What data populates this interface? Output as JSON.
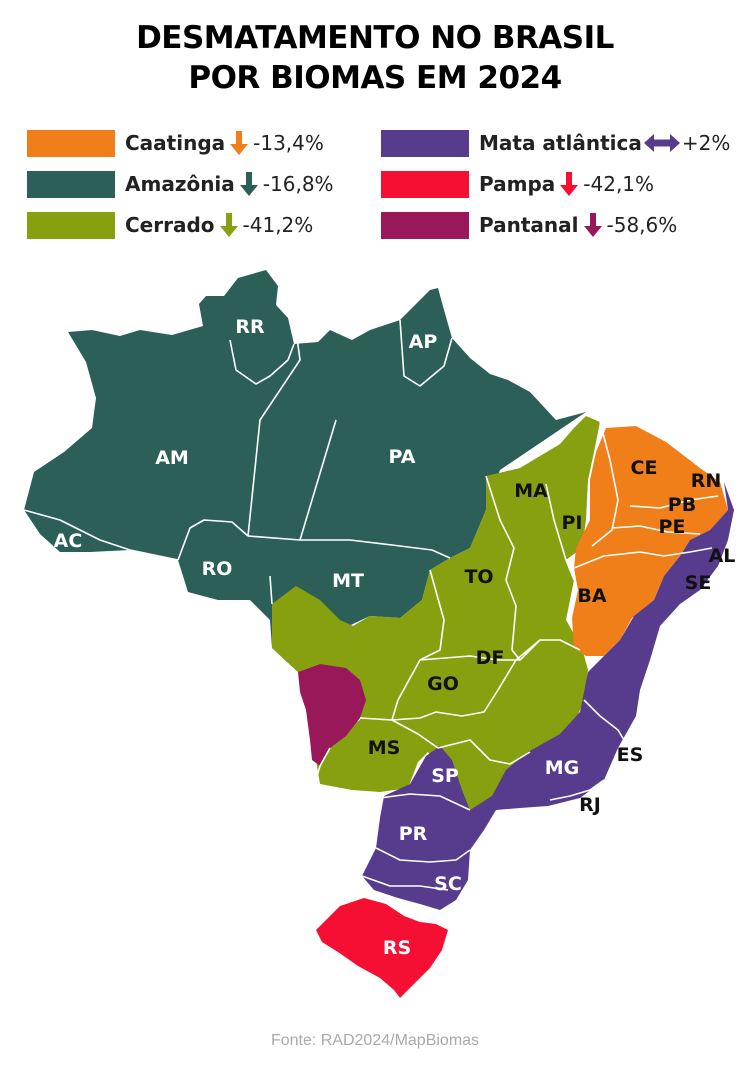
{
  "title": {
    "line1": "DESMATAMENTO NO BRASIL",
    "line2": "POR BIOMAS EM 2024"
  },
  "colors": {
    "caatinga": "#f07f1a",
    "amazonia": "#2d5f59",
    "cerrado": "#87a00f",
    "mata_atlantica": "#573b8d",
    "pampa": "#f50f32",
    "pantanal": "#98185a",
    "borders": "#ffffff"
  },
  "legend": [
    {
      "name": "Caatinga",
      "value": "-13,4%",
      "direction": "down",
      "color": "#f07f1a",
      "icon": "arrow-down-icon"
    },
    {
      "name": "Amazônia",
      "value": "-16,8%",
      "direction": "down",
      "color": "#2d5f59",
      "icon": "arrow-down-icon"
    },
    {
      "name": "Cerrado",
      "value": "-41,2%",
      "direction": "down",
      "color": "#87a00f",
      "icon": "arrow-down-icon"
    },
    {
      "name": "Mata atlântica",
      "value": "+2%",
      "direction": "both",
      "color": "#573b8d",
      "icon": "arrow-left-right-icon"
    },
    {
      "name": "Pampa",
      "value": "-42,1%",
      "direction": "down",
      "color": "#f50f32",
      "icon": "arrow-down-icon"
    },
    {
      "name": "Pantanal",
      "value": "-58,6%",
      "direction": "down",
      "color": "#98185a",
      "icon": "arrow-down-icon"
    }
  ],
  "states": [
    "RR",
    "AP",
    "AM",
    "PA",
    "AC",
    "RO",
    "MT",
    "MA",
    "PI",
    "CE",
    "RN",
    "PB",
    "PE",
    "AL",
    "SE",
    "BA",
    "TO",
    "DF",
    "GO",
    "MS",
    "ES",
    "MG",
    "SP",
    "RJ",
    "PR",
    "SC",
    "RS"
  ],
  "source": "Fonte: RAD2024/MapBiomas"
}
